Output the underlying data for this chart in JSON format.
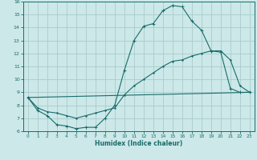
{
  "xlabel": "Humidex (Indice chaleur)",
  "bg_color": "#cce8e8",
  "grid_color": "#aacccc",
  "line_color": "#1a6b6b",
  "xlim": [
    -0.5,
    23.5
  ],
  "ylim": [
    6,
    16
  ],
  "xticks": [
    0,
    1,
    2,
    3,
    4,
    5,
    6,
    7,
    8,
    9,
    10,
    11,
    12,
    13,
    14,
    15,
    16,
    17,
    18,
    19,
    20,
    21,
    22,
    23
  ],
  "yticks": [
    6,
    7,
    8,
    9,
    10,
    11,
    12,
    13,
    14,
    15,
    16
  ],
  "curve1_x": [
    0,
    1,
    2,
    3,
    4,
    5,
    6,
    7,
    8,
    9,
    10,
    11,
    12,
    13,
    14,
    15,
    16,
    17,
    18,
    19,
    20,
    21,
    22,
    23
  ],
  "curve1_y": [
    8.6,
    7.6,
    7.2,
    6.5,
    6.4,
    6.2,
    6.3,
    6.3,
    7.0,
    8.0,
    10.7,
    13.0,
    14.1,
    14.3,
    15.3,
    15.7,
    15.6,
    14.5,
    13.8,
    12.2,
    12.1,
    9.3,
    9.0,
    9.0
  ],
  "curve2_x": [
    0,
    1,
    2,
    3,
    4,
    5,
    6,
    7,
    8,
    9,
    10,
    11,
    12,
    13,
    14,
    15,
    16,
    17,
    18,
    19,
    20,
    21,
    22,
    23
  ],
  "curve2_y": [
    8.6,
    7.8,
    7.5,
    7.4,
    7.2,
    7.0,
    7.2,
    7.4,
    7.6,
    7.8,
    8.8,
    9.5,
    10.0,
    10.5,
    11.0,
    11.4,
    11.5,
    11.8,
    12.0,
    12.2,
    12.2,
    11.5,
    9.5,
    9.0
  ],
  "curve3_x": [
    0,
    23
  ],
  "curve3_y": [
    8.6,
    9.0
  ]
}
